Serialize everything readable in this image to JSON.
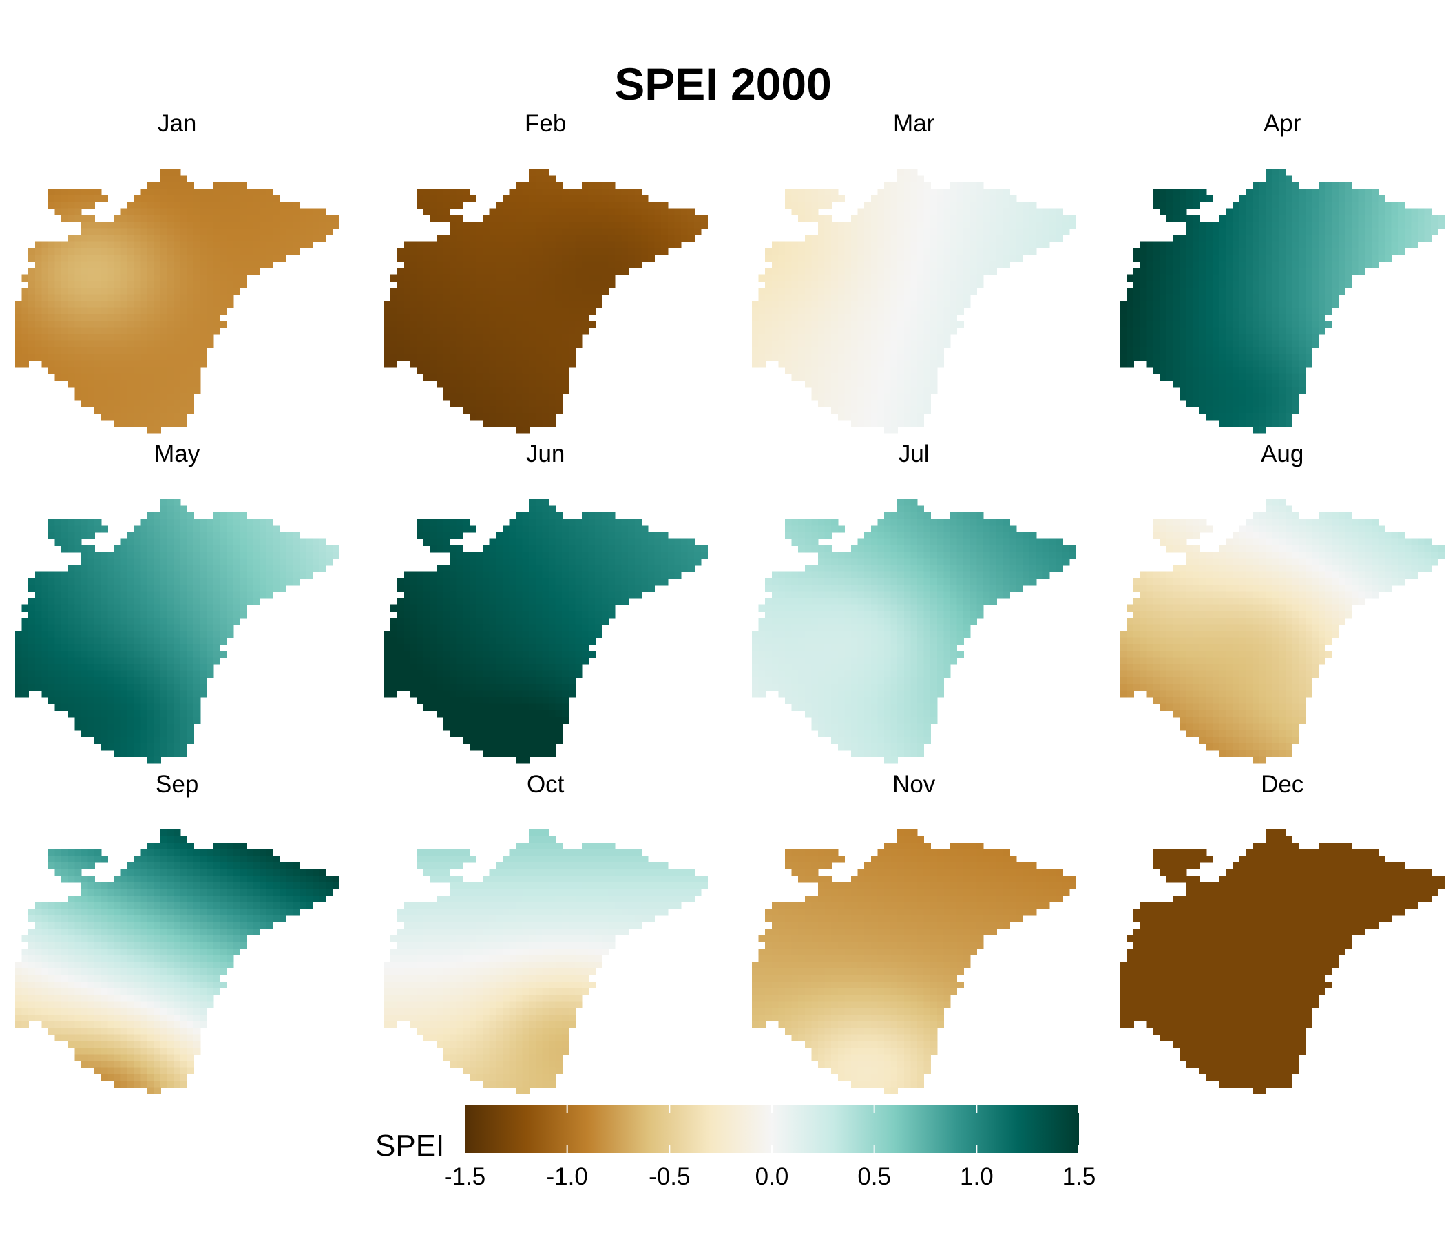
{
  "title": "SPEI 2000",
  "colors": {
    "scale": [
      "#543005",
      "#8c510a",
      "#bf812d",
      "#dfc27d",
      "#f6e8c3",
      "#f5f5f5",
      "#c7eae5",
      "#80cdc1",
      "#35978f",
      "#01665e",
      "#003c30"
    ]
  },
  "map_data": {
    "variable": "SPEI",
    "range": [
      -1.5,
      1.5
    ],
    "panels": [
      {
        "month": "Jan",
        "mean": -0.9,
        "grad": [
          0.05,
          0.05
        ],
        "blob": [
          0.22,
          0.38,
          0.3
        ]
      },
      {
        "month": "Feb",
        "mean": -1.25,
        "grad": [
          0.1,
          -0.1
        ],
        "blob": [
          0.7,
          0.35,
          -0.12
        ]
      },
      {
        "month": "Mar",
        "mean": 0.02,
        "grad": [
          0.25,
          0.05
        ],
        "blob": [
          0.1,
          0.3,
          -0.1
        ]
      },
      {
        "month": "Apr",
        "mean": 0.95,
        "grad": [
          -0.55,
          -0.05
        ],
        "blob": [
          0.5,
          0.9,
          0.2
        ]
      },
      {
        "month": "May",
        "mean": 0.85,
        "grad": [
          -0.4,
          0.15
        ],
        "blob": [
          0.35,
          0.8,
          0.15
        ]
      },
      {
        "month": "Jun",
        "mean": 1.25,
        "grad": [
          -0.25,
          0.15
        ],
        "blob": [
          0.5,
          0.95,
          0.2
        ]
      },
      {
        "month": "Jul",
        "mean": 0.55,
        "grad": [
          0.3,
          -0.2
        ],
        "blob": [
          0.35,
          0.5,
          -0.2
        ]
      },
      {
        "month": "Aug",
        "mean": -0.25,
        "grad": [
          0.35,
          -0.45
        ],
        "blob": [
          0.45,
          0.5,
          -0.2
        ]
      },
      {
        "month": "Sep",
        "mean": 0.45,
        "grad": [
          0.45,
          -0.85
        ],
        "blob": [
          0.3,
          0.95,
          -0.3
        ]
      },
      {
        "month": "Oct",
        "mean": 0.02,
        "grad": [
          0.0,
          -0.5
        ],
        "blob": [
          0.55,
          0.75,
          -0.35
        ]
      },
      {
        "month": "Nov",
        "mean": -0.75,
        "grad": [
          -0.05,
          0.15
        ],
        "blob": [
          0.35,
          0.9,
          0.35
        ]
      },
      {
        "month": "Dec",
        "mean": -1.3,
        "grad": [
          0.0,
          0.0
        ],
        "blob": [
          0.5,
          0.5,
          0.0
        ]
      }
    ]
  },
  "legend": {
    "title": "SPEI",
    "ticks": [
      "-1.5",
      "-1.0",
      "-0.5",
      "0.0",
      "0.5",
      "1.0",
      "1.5"
    ]
  }
}
